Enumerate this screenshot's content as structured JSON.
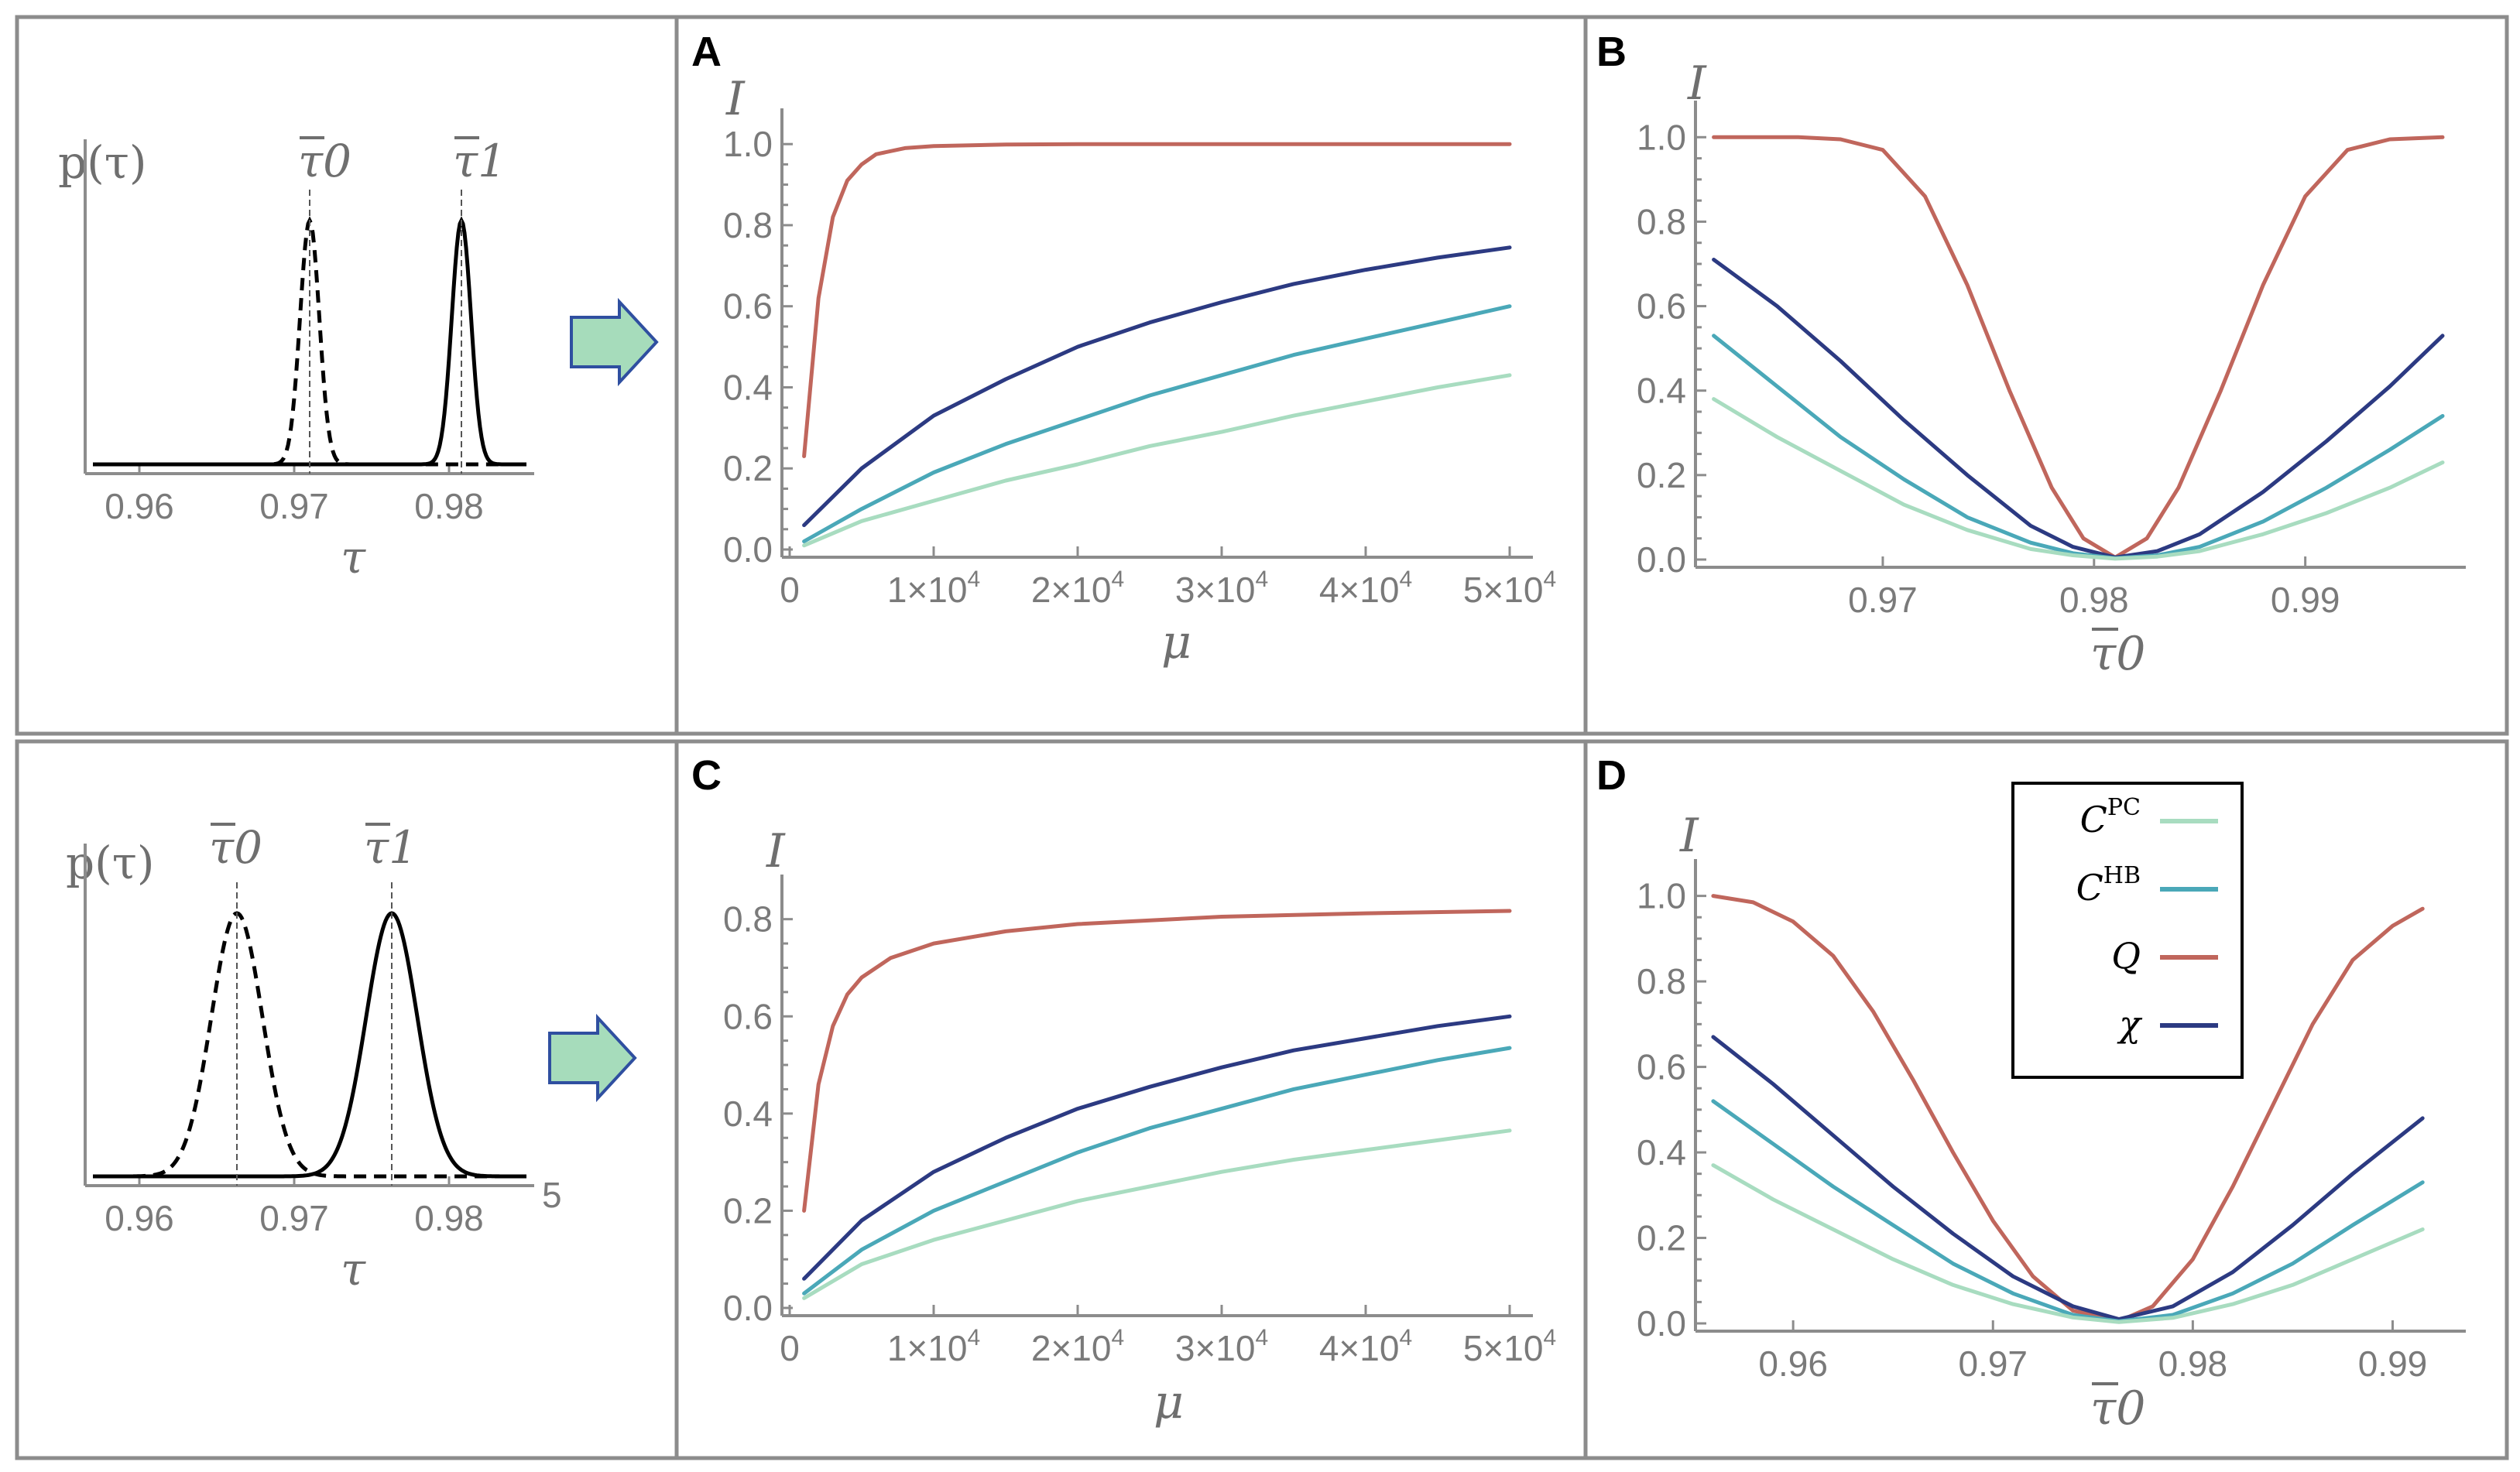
{
  "colors": {
    "C_PC": "#a8dcc0",
    "C_HB": "#4aa8b8",
    "Q": "#c0665c",
    "chi": "#2c3a82",
    "arrow_fill": "#a6dcbb",
    "arrow_stroke": "#2f4fa0"
  },
  "distributions": [
    {
      "id": "top",
      "ylabel": "p(τ)",
      "xlabel": "τ",
      "peak_labels": [
        "τ0",
        "τ1"
      ],
      "tick_labels": [
        "0.96",
        "0.97",
        "0.98"
      ],
      "xlim": [
        0.9565,
        0.9855
      ],
      "ticks": [
        0.96,
        0.97,
        0.98
      ],
      "mean0": 0.971,
      "mean1": 0.9808,
      "sd": 0.00062
    },
    {
      "id": "bottom",
      "ylabel": "p(τ)",
      "xlabel": "τ",
      "peak_labels": [
        "τ0",
        "τ1"
      ],
      "tick_labels": [
        "0.96",
        "0.97",
        "0.98"
      ],
      "extra_label": "5",
      "xlim": [
        0.9565,
        0.9855
      ],
      "ticks": [
        0.96,
        0.97,
        0.98
      ],
      "mean0": 0.9663,
      "mean1": 0.9763,
      "sd": 0.00165
    }
  ],
  "legend": {
    "items": [
      {
        "label": "C",
        "sup": "PC",
        "color_key": "C_PC"
      },
      {
        "label": "C",
        "sup": "HB",
        "color_key": "C_HB"
      },
      {
        "label": "Q",
        "sup": "",
        "color_key": "Q"
      },
      {
        "label": "χ",
        "sup": "",
        "color_key": "chi"
      }
    ]
  },
  "chart_data": [
    {
      "panel": "A",
      "type": "line",
      "ylabel": "I",
      "xlabel": "μ",
      "xlim": [
        0,
        50000
      ],
      "ylim": [
        0,
        1.05
      ],
      "xticks": [
        0,
        10000,
        20000,
        30000,
        40000,
        50000
      ],
      "xtick_labels": [
        {
          "base": "0",
          "sup": ""
        },
        {
          "base": "1×10",
          "sup": "4"
        },
        {
          "base": "2×10",
          "sup": "4"
        },
        {
          "base": "3×10",
          "sup": "4"
        },
        {
          "base": "4×10",
          "sup": "4"
        },
        {
          "base": "5×10",
          "sup": "4"
        }
      ],
      "yticks": [
        0,
        0.2,
        0.4,
        0.6,
        0.8,
        1.0
      ],
      "ytick_labels": [
        "0.0",
        "0.2",
        "0.4",
        "0.6",
        "0.8",
        "1.0"
      ],
      "series": [
        {
          "color_key": "Q",
          "x": [
            1000,
            2000,
            3000,
            4000,
            5000,
            6000,
            8000,
            10000,
            15000,
            20000,
            30000,
            40000,
            50000
          ],
          "y": [
            0.23,
            0.62,
            0.82,
            0.91,
            0.95,
            0.975,
            0.99,
            0.995,
            0.999,
            1.0,
            1.0,
            1.0,
            1.0
          ]
        },
        {
          "color_key": "chi",
          "x": [
            1000,
            5000,
            10000,
            15000,
            20000,
            25000,
            30000,
            35000,
            40000,
            45000,
            50000
          ],
          "y": [
            0.06,
            0.2,
            0.33,
            0.42,
            0.5,
            0.56,
            0.61,
            0.655,
            0.69,
            0.72,
            0.745
          ]
        },
        {
          "color_key": "C_HB",
          "x": [
            1000,
            5000,
            10000,
            15000,
            20000,
            25000,
            30000,
            35000,
            40000,
            45000,
            50000
          ],
          "y": [
            0.02,
            0.1,
            0.19,
            0.26,
            0.32,
            0.38,
            0.43,
            0.48,
            0.52,
            0.56,
            0.6
          ]
        },
        {
          "color_key": "C_PC",
          "x": [
            1000,
            5000,
            10000,
            15000,
            20000,
            25000,
            30000,
            35000,
            40000,
            45000,
            50000
          ],
          "y": [
            0.01,
            0.07,
            0.12,
            0.17,
            0.21,
            0.255,
            0.29,
            0.33,
            0.365,
            0.4,
            0.43
          ]
        }
      ]
    },
    {
      "panel": "B",
      "type": "line",
      "ylabel": "I",
      "xlabel": "τ0",
      "xlim": [
        0.9615,
        0.9965
      ],
      "ylim": [
        0,
        1.05
      ],
      "xticks": [
        0.97,
        0.98,
        0.99
      ],
      "xtick_labels": [
        "0.97",
        "0.98",
        "0.99"
      ],
      "yticks": [
        0,
        0.2,
        0.4,
        0.6,
        0.8,
        1.0
      ],
      "ytick_labels": [
        "0.0",
        "0.2",
        "0.4",
        "0.6",
        "0.8",
        "1.0"
      ],
      "series": [
        {
          "color_key": "Q",
          "x": [
            0.962,
            0.966,
            0.968,
            0.97,
            0.972,
            0.974,
            0.976,
            0.978,
            0.9795,
            0.981,
            0.9825,
            0.984,
            0.986,
            0.988,
            0.99,
            0.992,
            0.994,
            0.9965
          ],
          "y": [
            1.0,
            1.0,
            0.995,
            0.97,
            0.86,
            0.65,
            0.4,
            0.17,
            0.05,
            0.005,
            0.05,
            0.17,
            0.4,
            0.65,
            0.86,
            0.97,
            0.995,
            1.0
          ]
        },
        {
          "color_key": "chi",
          "x": [
            0.962,
            0.965,
            0.968,
            0.971,
            0.974,
            0.977,
            0.979,
            0.981,
            0.983,
            0.985,
            0.988,
            0.991,
            0.994,
            0.9965
          ],
          "y": [
            0.71,
            0.6,
            0.47,
            0.33,
            0.2,
            0.08,
            0.03,
            0.005,
            0.02,
            0.06,
            0.16,
            0.28,
            0.41,
            0.53
          ]
        },
        {
          "color_key": "C_HB",
          "x": [
            0.962,
            0.965,
            0.968,
            0.971,
            0.974,
            0.977,
            0.979,
            0.981,
            0.983,
            0.985,
            0.988,
            0.991,
            0.994,
            0.9965
          ],
          "y": [
            0.53,
            0.41,
            0.29,
            0.19,
            0.1,
            0.04,
            0.015,
            0.003,
            0.01,
            0.03,
            0.09,
            0.17,
            0.26,
            0.34
          ]
        },
        {
          "color_key": "C_PC",
          "x": [
            0.962,
            0.965,
            0.968,
            0.971,
            0.974,
            0.977,
            0.979,
            0.981,
            0.983,
            0.985,
            0.988,
            0.991,
            0.994,
            0.9965
          ],
          "y": [
            0.38,
            0.29,
            0.21,
            0.13,
            0.07,
            0.025,
            0.01,
            0.002,
            0.007,
            0.02,
            0.06,
            0.11,
            0.17,
            0.23
          ]
        }
      ]
    },
    {
      "panel": "C",
      "type": "line",
      "ylabel": "I",
      "xlabel": "μ",
      "xlim": [
        0,
        50000
      ],
      "ylim": [
        0,
        0.86
      ],
      "xticks": [
        0,
        10000,
        20000,
        30000,
        40000,
        50000
      ],
      "xtick_labels": [
        {
          "base": "0",
          "sup": ""
        },
        {
          "base": "1×10",
          "sup": "4"
        },
        {
          "base": "2×10",
          "sup": "4"
        },
        {
          "base": "3×10",
          "sup": "4"
        },
        {
          "base": "4×10",
          "sup": "4"
        },
        {
          "base": "5×10",
          "sup": "4"
        }
      ],
      "yticks": [
        0,
        0.2,
        0.4,
        0.6,
        0.8
      ],
      "ytick_labels": [
        "0.0",
        "0.2",
        "0.4",
        "0.6",
        "0.8"
      ],
      "series": [
        {
          "color_key": "Q",
          "x": [
            1000,
            2000,
            3000,
            4000,
            5000,
            7000,
            10000,
            15000,
            20000,
            30000,
            40000,
            50000
          ],
          "y": [
            0.2,
            0.46,
            0.58,
            0.645,
            0.68,
            0.72,
            0.75,
            0.775,
            0.79,
            0.805,
            0.812,
            0.817
          ]
        },
        {
          "color_key": "chi",
          "x": [
            1000,
            5000,
            10000,
            15000,
            20000,
            25000,
            30000,
            35000,
            40000,
            45000,
            50000
          ],
          "y": [
            0.06,
            0.18,
            0.28,
            0.35,
            0.41,
            0.455,
            0.495,
            0.53,
            0.555,
            0.58,
            0.6
          ]
        },
        {
          "color_key": "C_HB",
          "x": [
            1000,
            5000,
            10000,
            15000,
            20000,
            25000,
            30000,
            35000,
            40000,
            45000,
            50000
          ],
          "y": [
            0.03,
            0.12,
            0.2,
            0.26,
            0.32,
            0.37,
            0.41,
            0.45,
            0.48,
            0.51,
            0.535
          ]
        },
        {
          "color_key": "C_PC",
          "x": [
            1000,
            5000,
            10000,
            15000,
            20000,
            25000,
            30000,
            35000,
            40000,
            45000,
            50000
          ],
          "y": [
            0.02,
            0.09,
            0.14,
            0.18,
            0.22,
            0.25,
            0.28,
            0.305,
            0.325,
            0.345,
            0.365
          ]
        }
      ]
    },
    {
      "panel": "D",
      "type": "line",
      "ylabel": "I",
      "xlabel": "τ0",
      "xlim": [
        0.9555,
        0.9925
      ],
      "ylim": [
        0,
        1.05
      ],
      "xticks": [
        0.96,
        0.97,
        0.98,
        0.99
      ],
      "xtick_labels": [
        "0.96",
        "0.97",
        "0.98",
        "0.99"
      ],
      "yticks": [
        0,
        0.2,
        0.4,
        0.6,
        0.8,
        1.0
      ],
      "ytick_labels": [
        "0.0",
        "0.2",
        "0.4",
        "0.6",
        "0.8",
        "1.0"
      ],
      "series": [
        {
          "color_key": "Q",
          "x": [
            0.956,
            0.958,
            0.96,
            0.962,
            0.964,
            0.966,
            0.968,
            0.97,
            0.972,
            0.974,
            0.9763,
            0.978,
            0.98,
            0.982,
            0.984,
            0.986,
            0.988,
            0.99,
            0.9915
          ],
          "y": [
            1.0,
            0.985,
            0.94,
            0.86,
            0.73,
            0.57,
            0.4,
            0.24,
            0.11,
            0.03,
            0.005,
            0.04,
            0.15,
            0.32,
            0.51,
            0.7,
            0.85,
            0.93,
            0.97
          ]
        },
        {
          "color_key": "chi",
          "x": [
            0.956,
            0.959,
            0.962,
            0.965,
            0.968,
            0.971,
            0.974,
            0.9763,
            0.979,
            0.982,
            0.985,
            0.988,
            0.9915
          ],
          "y": [
            0.67,
            0.56,
            0.44,
            0.32,
            0.21,
            0.11,
            0.04,
            0.01,
            0.04,
            0.12,
            0.23,
            0.35,
            0.48
          ]
        },
        {
          "color_key": "C_HB",
          "x": [
            0.956,
            0.959,
            0.962,
            0.965,
            0.968,
            0.971,
            0.974,
            0.9763,
            0.979,
            0.982,
            0.985,
            0.988,
            0.9915
          ],
          "y": [
            0.52,
            0.42,
            0.32,
            0.23,
            0.14,
            0.07,
            0.02,
            0.005,
            0.02,
            0.07,
            0.14,
            0.23,
            0.33
          ]
        },
        {
          "color_key": "C_PC",
          "x": [
            0.956,
            0.959,
            0.962,
            0.965,
            0.968,
            0.971,
            0.974,
            0.9763,
            0.979,
            0.982,
            0.985,
            0.988,
            0.9915
          ],
          "y": [
            0.37,
            0.29,
            0.22,
            0.15,
            0.09,
            0.045,
            0.014,
            0.003,
            0.013,
            0.045,
            0.09,
            0.15,
            0.22
          ]
        }
      ]
    }
  ]
}
